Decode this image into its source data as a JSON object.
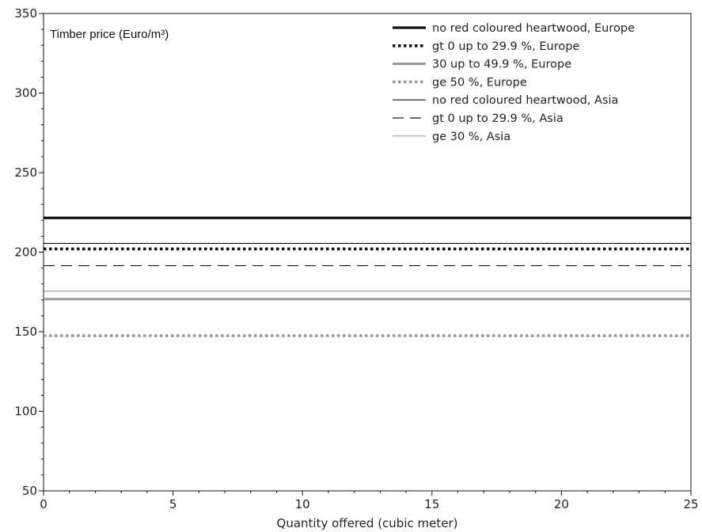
{
  "chart_data": {
    "type": "line",
    "title": "Timber price (Euro/m³)",
    "xlabel": "Quantity offered (cubic meter)",
    "ylabel": "",
    "xlim": [
      0,
      25
    ],
    "ylim": [
      50,
      350
    ],
    "xticks": [
      0,
      5,
      10,
      15,
      20,
      25
    ],
    "yticks": [
      50,
      100,
      150,
      200,
      250,
      300,
      350
    ],
    "grid": false,
    "legend_position": "top-right",
    "series": [
      {
        "name": "no red coloured heartwood, Europe",
        "x": [
          0,
          25
        ],
        "y": [
          221.5,
          221.5
        ],
        "color": "#111111",
        "style": "thick-solid"
      },
      {
        "name": "gt 0 up to 29.9 %, Europe",
        "x": [
          0,
          25
        ],
        "y": [
          202,
          202
        ],
        "color": "#111111",
        "style": "thick-dotted"
      },
      {
        "name": "30 up to 49.9 %, Europe",
        "x": [
          0,
          25
        ],
        "y": [
          170.5,
          170.5
        ],
        "color": "#9a9a9a",
        "style": "thick-solid"
      },
      {
        "name": "ge 50 %, Europe",
        "x": [
          0,
          25
        ],
        "y": [
          147.5,
          147.5
        ],
        "color": "#9a9a9a",
        "style": "thick-dotted"
      },
      {
        "name": "no red coloured heartwood, Asia",
        "x": [
          0,
          25
        ],
        "y": [
          205.5,
          205.5
        ],
        "color": "#111111",
        "style": "thin-solid"
      },
      {
        "name": "gt 0 up to 29.9 %, Asia",
        "x": [
          0,
          25
        ],
        "y": [
          191.5,
          191.5
        ],
        "color": "#111111",
        "style": "thin-dashed"
      },
      {
        "name": "ge 30 %, Asia",
        "x": [
          0,
          25
        ],
        "y": [
          175.5,
          175.5
        ],
        "color": "#9a9a9a",
        "style": "thin-solid"
      }
    ]
  }
}
